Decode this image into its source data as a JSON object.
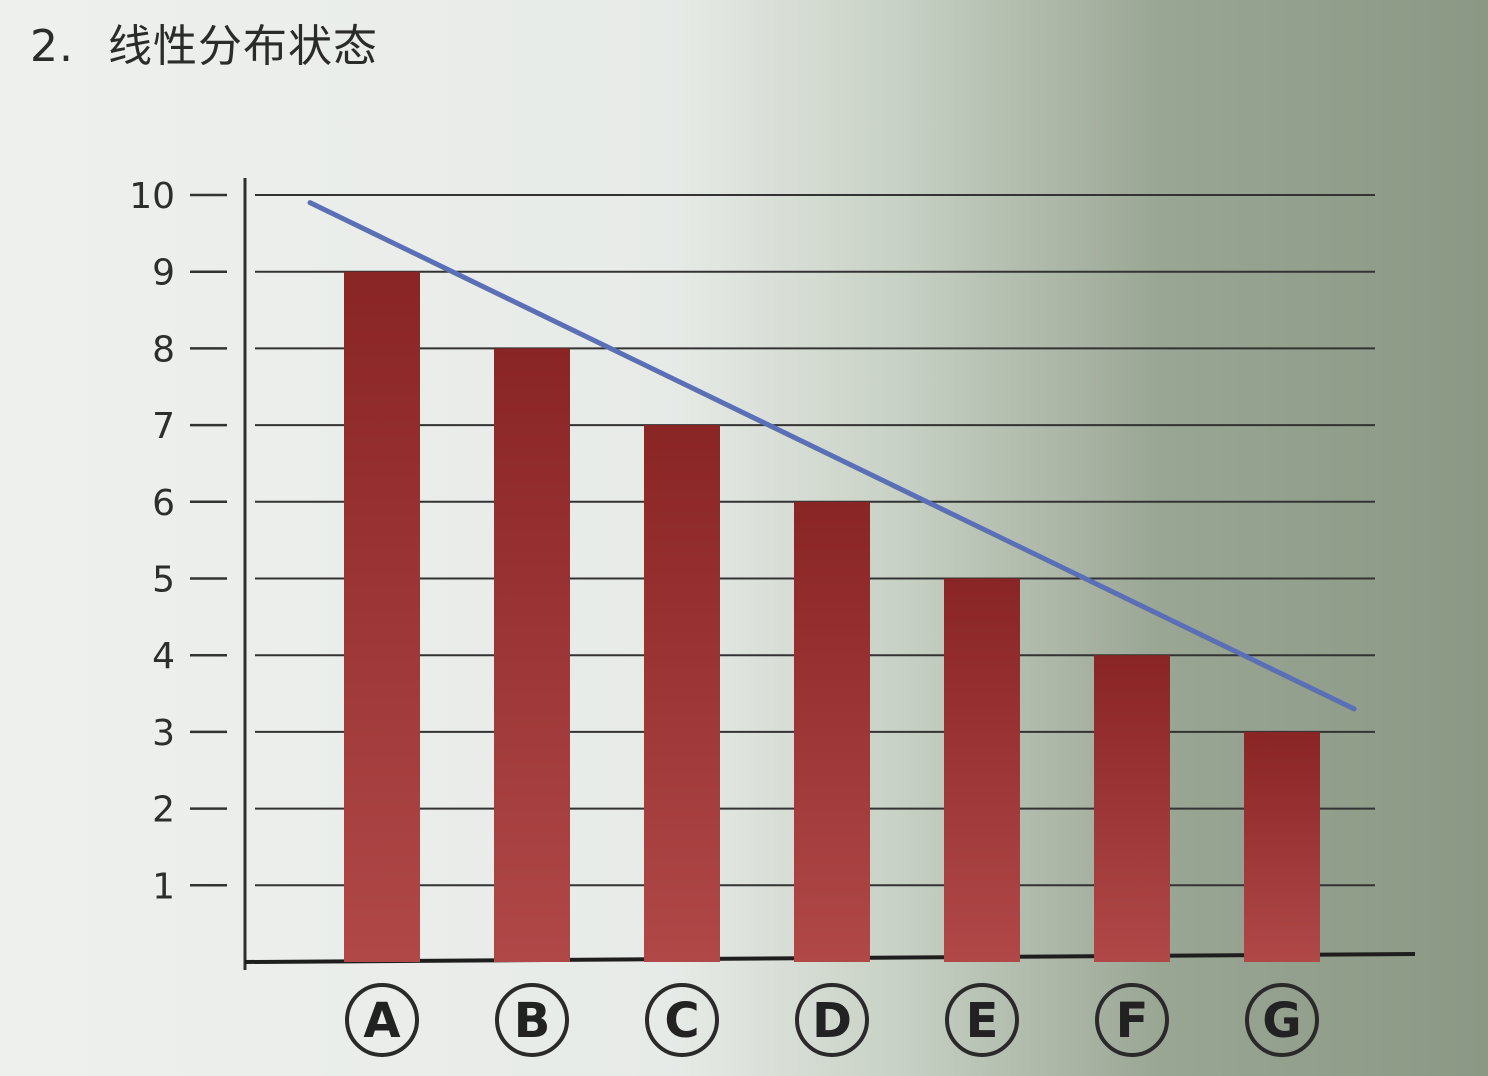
{
  "heading": {
    "number": "2.",
    "text": "线性分布状态"
  },
  "chart_data": {
    "type": "bar",
    "categories": [
      "A",
      "B",
      "C",
      "D",
      "E",
      "F",
      "G"
    ],
    "values": [
      9,
      8,
      7,
      6,
      5,
      4,
      3
    ],
    "y_ticks": [
      1,
      2,
      3,
      4,
      5,
      6,
      7,
      8,
      9,
      10
    ],
    "ylim": [
      0,
      10
    ],
    "grid": true,
    "trend_line": {
      "from": 9.9,
      "to": 3.3
    },
    "colors": {
      "bar": "#8e2a2a",
      "trend_line": "#5a6fb5",
      "grid": "#333333"
    }
  }
}
